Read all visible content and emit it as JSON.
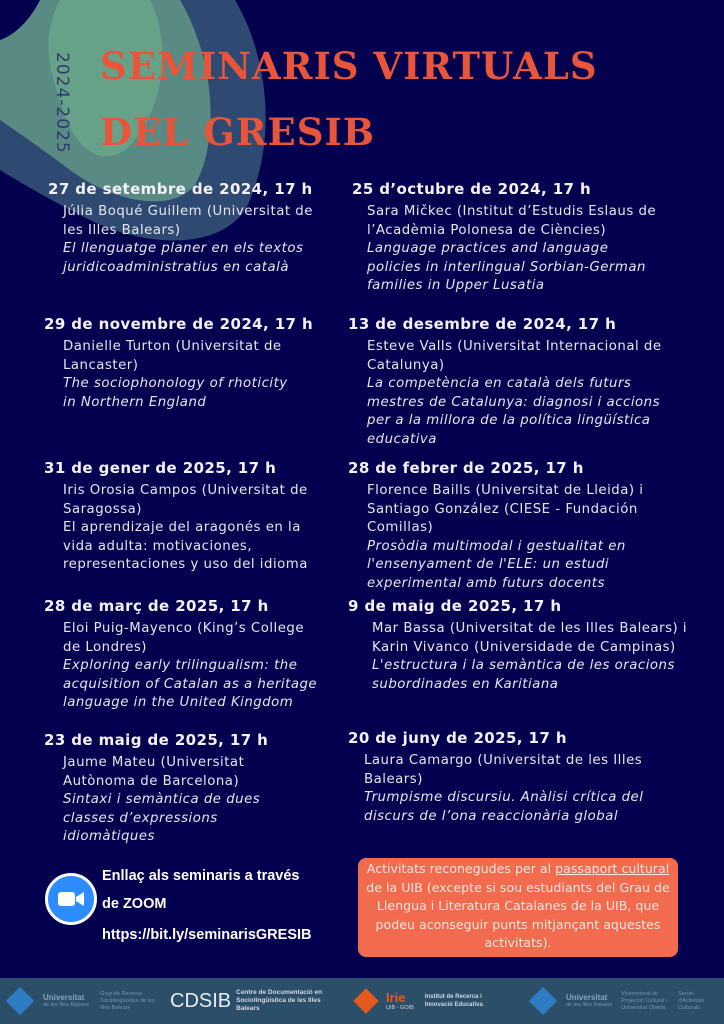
{
  "header": {
    "years": "2024-2025",
    "title_line1": "SEMINARIS VIRTUALS",
    "title_line2": "DEL GRESIB"
  },
  "colors": {
    "background": "#03004f",
    "title": "#e9553a",
    "note_box": "#f26b4f",
    "zoom": "#2d8cff",
    "footer": "#2c4f69"
  },
  "events_left": [
    {
      "date": "27 de setembre de 2024, 17 h",
      "speaker": "Júlia Boqué Guillem (Universitat de les Illes Balears)",
      "talk": "El llenguatge planer en els textos juridicoadministratius en català"
    },
    {
      "date": "29 de novembre de 2024, 17 h",
      "speaker": "Danielle Turton (Universitat de Lancaster)",
      "talk": "The sociophonology of rhoticity in Northern England"
    },
    {
      "date": "31 de gener de 2025, 17 h",
      "speaker": "Iris Orosia Campos (Universitat de Saragossa)",
      "talk": "El aprendizaje del aragonés en la vida adulta: motivaciones, representaciones y uso del idioma"
    },
    {
      "date": "28 de març de 2025, 17 h",
      "speaker": "Eloi Puig-Mayenco (King’s College de Londres)",
      "talk": "Exploring early trilingualism: the acquisition of Catalan as a heritage language in the United Kingdom"
    },
    {
      "date": "23 de maig de 2025, 17 h",
      "speaker": "Jaume Mateu (Universitat Autònoma de Barcelona)",
      "talk": "Sintaxi i semàntica de dues classes d’expressions idiomàtiques"
    }
  ],
  "events_right": [
    {
      "date": "25 d’octubre de 2024, 17 h",
      "speaker": "Sara Mičkec (Institut d’Estudis Eslaus de l’Acadèmia Polonesa de Ciències)",
      "talk": "Language practices and language policies in interlingual Sorbian-German families in Upper Lusatia"
    },
    {
      "date": "13 de desembre de 2024, 17 h",
      "speaker": "Esteve Valls (Universitat Internacional de Catalunya)",
      "talk": "La competència en català dels futurs mestres de Catalunya: diagnosi i accions per a la millora de la política lingüística educativa"
    },
    {
      "date": "28 de febrer de 2025, 17 h",
      "speaker": "Florence Baills (Universitat de Lleida) i Santiago González (CIESE - Fundación Comillas)",
      "talk": "Prosòdia multimodal i gestualitat en l'ensenyament de l'ELE: un estudi experimental amb futurs docents"
    },
    {
      "date": "9 de maig de 2025, 17 h",
      "speaker": "Mar Bassa (Universitat de les Illes Balears) i Karin Vivanco (Universidade de Campinas)",
      "talk": "L'estructura i la semàntica de les oracions subordinades en Karitiana"
    },
    {
      "date": "20 de juny de 2025, 17 h",
      "speaker": "Laura Camargo (Universitat de les Illes Balears)",
      "talk": "Trumpisme discursiu. Anàlisi crítica del discurs de l’ona reaccionària global"
    }
  ],
  "link": {
    "line1": "Enllaç als seminaris a través",
    "line2": "de ZOOM",
    "url": "https://bit.ly/seminarisGRESIB",
    "icon": "zoom-camera-icon"
  },
  "note": {
    "before": "Activitats reconegudes per al ",
    "link_text": "passaport cultural",
    "after": " de la UIB (excepte si sou estudiants del Grau de Llengua i Literatura Catalanes de la UIB, que podeu aconseguir punts mitjançant aquestes activitats)."
  },
  "footer": {
    "uib1_name": "Universitat",
    "uib1_sub": "de les Illes Balears",
    "gresib": "Grup de Recerca Sociolingüística de les Illes Balears",
    "cdsib_logo": "CDSIB",
    "cdsib_name": "Centre de Documentació en Sociolingüística de les Illes Balears",
    "irie_logo": "Irie",
    "irie_sub": "UIB - GOIB",
    "irie_name": "Institut de Recerca i Innovació Educativa",
    "uib2_name": "Universitat",
    "uib2_sub": "de les Illes Balears",
    "vice": "Vicerectorat de Projecció Cultural i Universitat Oberta",
    "servei": "Servei d'Activitats Culturals"
  }
}
